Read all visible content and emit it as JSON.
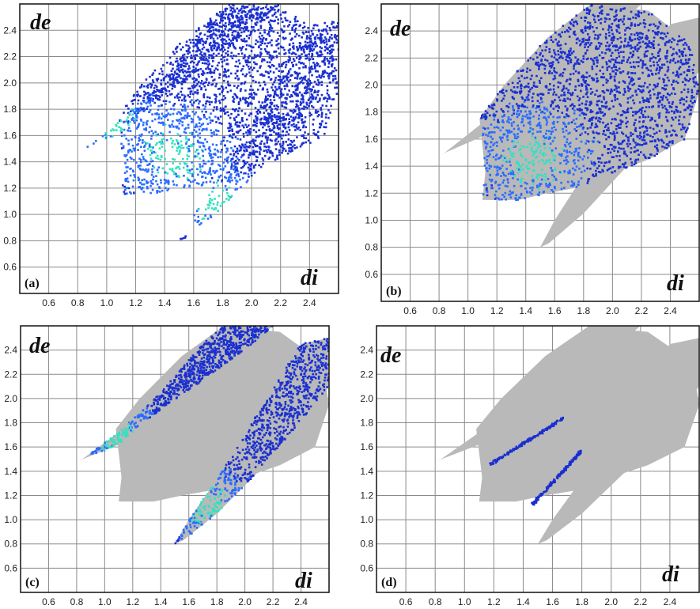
{
  "colors": {
    "grid": "#8a8a8a",
    "frame": "#111111",
    "grey_fill": "#b9b9b9",
    "density_low": "#1a2fd0",
    "density_mid": "#2a6bff",
    "density_high": "#35e0c0"
  },
  "chart_data": [
    {
      "type": "scatter",
      "panel": "(a)",
      "xlabel": "di",
      "ylabel": "de",
      "xlim": [
        0.4,
        2.6
      ],
      "ylim": [
        0.4,
        2.6
      ],
      "x_ticks": [
        "0.6",
        "0.8",
        "1.0",
        "1.2",
        "1.4",
        "1.6",
        "1.8",
        "2.0",
        "2.2",
        "2.4"
      ],
      "y_ticks": [
        "0.6",
        "0.8",
        "1.0",
        "1.2",
        "1.4",
        "1.6",
        "1.8",
        "2.0",
        "2.2",
        "2.4"
      ],
      "grey_background": false,
      "highlight": "all contacts"
    },
    {
      "type": "scatter",
      "panel": "(b)",
      "xlabel": "di",
      "ylabel": "de",
      "xlim": [
        0.4,
        2.6
      ],
      "ylim": [
        0.4,
        2.6
      ],
      "x_ticks": [
        "0.6",
        "0.8",
        "1.0",
        "1.2",
        "1.4",
        "1.6",
        "1.8",
        "2.0",
        "2.2",
        "2.4"
      ],
      "y_ticks": [
        "0.6",
        "0.8",
        "1.0",
        "1.2",
        "1.4",
        "1.6",
        "1.8",
        "2.0",
        "2.2",
        "2.4"
      ],
      "grey_background": true,
      "highlight": "central body"
    },
    {
      "type": "scatter",
      "panel": "(c)",
      "xlabel": "di",
      "ylabel": "de",
      "xlim": [
        0.4,
        2.6
      ],
      "ylim": [
        0.4,
        2.6
      ],
      "x_ticks": [
        "0.6",
        "0.8",
        "1.0",
        "1.2",
        "1.4",
        "1.6",
        "1.8",
        "2.0",
        "2.2",
        "2.4"
      ],
      "y_ticks": [
        "0.6",
        "0.8",
        "1.0",
        "1.2",
        "1.4",
        "1.6",
        "1.8",
        "2.0",
        "2.2",
        "2.4"
      ],
      "grey_background": true,
      "highlight": "two wings"
    },
    {
      "type": "scatter",
      "panel": "(d)",
      "xlabel": "di",
      "ylabel": "de",
      "xlim": [
        0.4,
        2.6
      ],
      "ylim": [
        0.4,
        2.6
      ],
      "x_ticks": [
        "0.6",
        "0.8",
        "1.0",
        "1.2",
        "1.4",
        "1.6",
        "1.8",
        "2.0",
        "2.2",
        "2.4"
      ],
      "y_ticks": [
        "0.6",
        "0.8",
        "1.0",
        "1.2",
        "1.4",
        "1.6",
        "1.8",
        "2.0",
        "2.2",
        "2.4"
      ],
      "grey_background": true,
      "highlight": "two short streaks"
    }
  ]
}
